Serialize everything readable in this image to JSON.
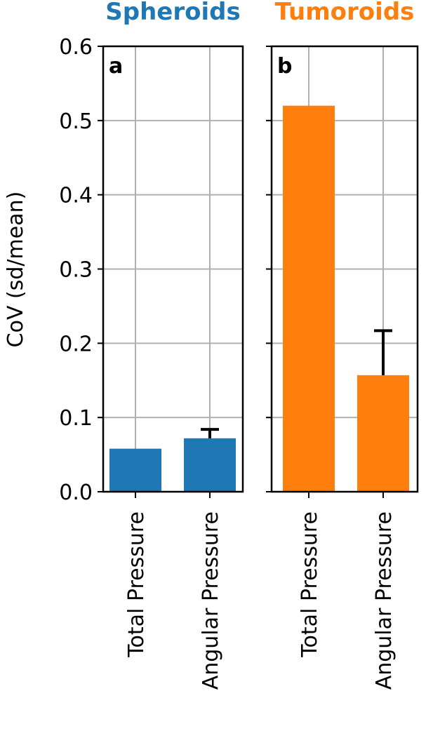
{
  "chart_data": {
    "type": "bar",
    "ylabel": "CoV (sd/mean)",
    "ylim": [
      0,
      0.6
    ],
    "yticks": [
      "0.0",
      "0.1",
      "0.2",
      "0.3",
      "0.4",
      "0.5",
      "0.6"
    ],
    "grid": true,
    "panels": [
      {
        "letter": "a",
        "title": "Spheroids",
        "color": "#1f77b4",
        "categories": [
          "Total Pressure",
          "Angular Pressure"
        ],
        "values": [
          0.058,
          0.072
        ],
        "errors": [
          null,
          0.012
        ]
      },
      {
        "letter": "b",
        "title": "Tumoroids",
        "color": "#ff7f0e",
        "categories": [
          "Total Pressure",
          "Angular Pressure"
        ],
        "values": [
          0.52,
          0.157
        ],
        "errors": [
          null,
          0.06
        ]
      }
    ]
  }
}
